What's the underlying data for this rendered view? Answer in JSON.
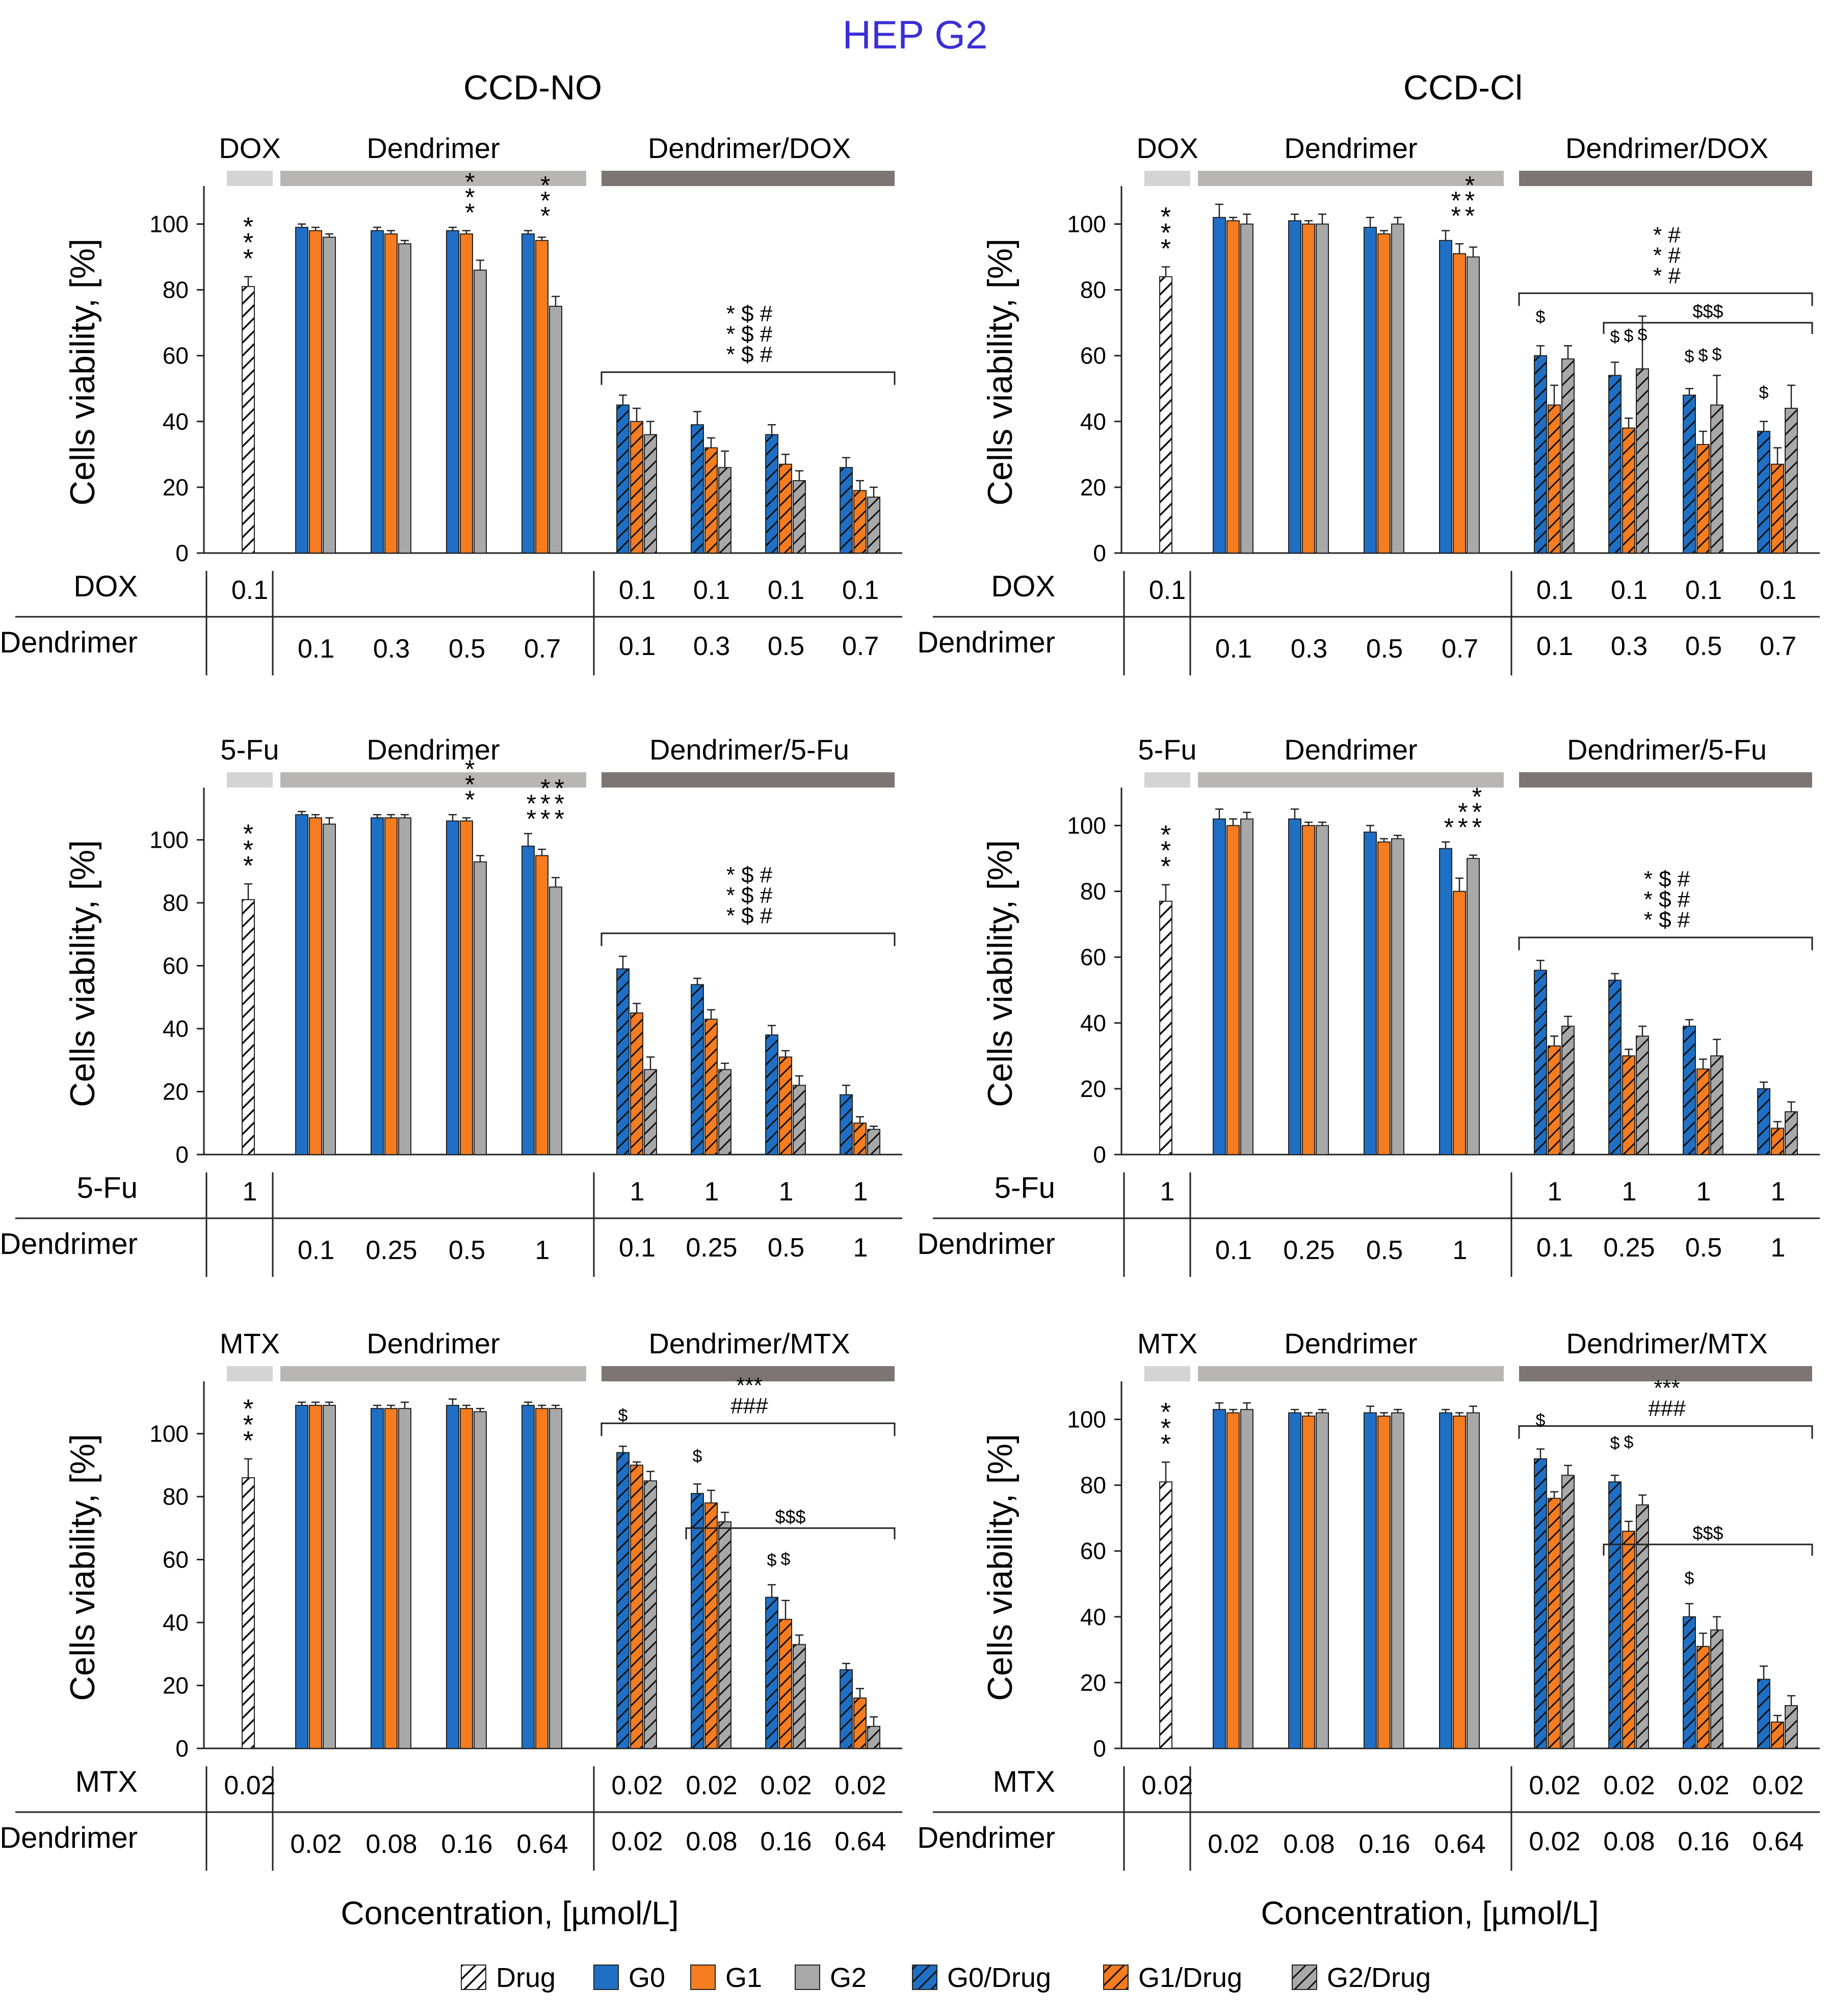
{
  "title": "HEP G2",
  "column_titles": [
    "CCD-NO",
    "CCD-Cl"
  ],
  "ylabel": "Cells viability, [%]",
  "xlabel": "Concentration, [µmol/L]",
  "legend": [
    {
      "label": "Drug",
      "color": "#ffffff",
      "hatched": true
    },
    {
      "label": "G0",
      "color": "#1f6fc5",
      "hatched": false
    },
    {
      "label": "G1",
      "color": "#f57c1f",
      "hatched": false
    },
    {
      "label": "G2",
      "color": "#a8a8a8",
      "hatched": false
    },
    {
      "label": "G0/Drug",
      "color": "#1f6fc5",
      "hatched": true
    },
    {
      "label": "G1/Drug",
      "color": "#f57c1f",
      "hatched": true
    },
    {
      "label": "G2/Drug",
      "color": "#a8a8a8",
      "hatched": true
    }
  ],
  "colors": {
    "title": "#3a2fd6",
    "bar_drug": "#ffffff",
    "g0": "#1f6fc5",
    "g1": "#f57c1f",
    "g2": "#a8a8a8",
    "group_drug": "#d4d4d4",
    "group_dendrimer": "#b8b5b5",
    "group_combo": "#7d7474"
  },
  "chart_data": [
    {
      "type": "bar",
      "panel": "CCD-NO DOX",
      "ylim": [
        0,
        110
      ],
      "yticks": [
        "0",
        "20",
        "40",
        "60",
        "80",
        "100"
      ],
      "group_labels": [
        "DOX",
        "Dendrimer",
        "Dendrimer/DOX"
      ],
      "row1_label": "DOX",
      "row2_label": "Dendrimer",
      "row1_values": [
        "0.1",
        "0.1",
        "0.1",
        "0.1",
        "0.1"
      ],
      "row2_values": [
        "0.1",
        "0.3",
        "0.5",
        "0.7",
        "0.1",
        "0.3",
        "0.5",
        "0.7"
      ],
      "drug": {
        "value": 81,
        "err": 3
      },
      "series": [
        {
          "name": "G0",
          "values": [
            99,
            98,
            98,
            97
          ],
          "err": [
            1,
            1,
            1,
            1
          ]
        },
        {
          "name": "G1",
          "values": [
            98,
            97,
            97,
            95
          ],
          "err": [
            1,
            1,
            1,
            1
          ]
        },
        {
          "name": "G2",
          "values": [
            96,
            94,
            86,
            75
          ],
          "err": [
            1,
            1,
            3,
            3
          ]
        },
        {
          "name": "G0/Drug",
          "values": [
            45,
            39,
            36,
            26
          ],
          "err": [
            3,
            4,
            3,
            3
          ]
        },
        {
          "name": "G1/Drug",
          "values": [
            40,
            32,
            27,
            19
          ],
          "err": [
            4,
            3,
            3,
            3
          ]
        },
        {
          "name": "G2/Drug",
          "values": [
            36,
            26,
            22,
            17
          ],
          "err": [
            4,
            5,
            3,
            3
          ]
        }
      ],
      "annotations": {
        "drug": "***",
        "dend": [
          "",
          "",
          "***",
          "***"
        ],
        "combo_sig": [
          "* $ #",
          "* $ #",
          "* $ #"
        ]
      }
    },
    {
      "type": "bar",
      "panel": "CCD-Cl DOX",
      "ylim": [
        0,
        110
      ],
      "yticks": [
        "0",
        "20",
        "40",
        "60",
        "80",
        "100"
      ],
      "group_labels": [
        "DOX",
        "Dendrimer",
        "Dendrimer/DOX"
      ],
      "row1_label": "DOX",
      "row2_label": "Dendrimer",
      "row1_values": [
        "0.1",
        "0.1",
        "0.1",
        "0.1",
        "0.1"
      ],
      "row2_values": [
        "0.1",
        "0.3",
        "0.5",
        "0.7",
        "0.1",
        "0.3",
        "0.5",
        "0.7"
      ],
      "drug": {
        "value": 84,
        "err": 3
      },
      "series": [
        {
          "name": "G0",
          "values": [
            102,
            101,
            99,
            95
          ],
          "err": [
            4,
            2,
            3,
            3
          ]
        },
        {
          "name": "G1",
          "values": [
            101,
            100,
            97,
            91
          ],
          "err": [
            1,
            1,
            1,
            3
          ]
        },
        {
          "name": "G2",
          "values": [
            100,
            100,
            100,
            90
          ],
          "err": [
            3,
            3,
            2,
            3
          ]
        },
        {
          "name": "G0/Drug",
          "values": [
            60,
            54,
            48,
            37
          ],
          "err": [
            3,
            4,
            2,
            3
          ]
        },
        {
          "name": "G1/Drug",
          "values": [
            45,
            38,
            33,
            27
          ],
          "err": [
            6,
            3,
            4,
            5
          ]
        },
        {
          "name": "G2/Drug",
          "values": [
            59,
            56,
            45,
            44
          ],
          "err": [
            4,
            16,
            9,
            7
          ]
        }
      ],
      "annotations": {
        "drug": "***",
        "dend": [
          "",
          "",
          "",
          "** ***"
        ],
        "combo_sig": [
          "* #",
          "* #",
          "* #"
        ],
        "combo_cols": [
          "$",
          "$ $ $",
          "$ $ $",
          "$"
        ],
        "combo_bracket2": "$$$"
      }
    },
    {
      "type": "bar",
      "panel": "CCD-NO 5-Fu",
      "ylim": [
        0,
        115
      ],
      "yticks": [
        "0",
        "20",
        "40",
        "60",
        "80",
        "100"
      ],
      "group_labels": [
        "5-Fu",
        "Dendrimer",
        "Dendrimer/5-Fu"
      ],
      "row1_label": "5-Fu",
      "row2_label": "Dendrimer",
      "row1_values": [
        "1",
        "1",
        "1",
        "1",
        "1"
      ],
      "row2_values": [
        "0.1",
        "0.25",
        "0.5",
        "1",
        "0.1",
        "0.25",
        "0.5",
        "1"
      ],
      "drug": {
        "value": 81,
        "err": 5
      },
      "series": [
        {
          "name": "G0",
          "values": [
            108,
            107,
            106,
            98
          ],
          "err": [
            1,
            1,
            2,
            4
          ]
        },
        {
          "name": "G1",
          "values": [
            107,
            107,
            106,
            95
          ],
          "err": [
            1,
            1,
            1,
            2
          ]
        },
        {
          "name": "G2",
          "values": [
            105,
            107,
            93,
            85
          ],
          "err": [
            2,
            1,
            2,
            3
          ]
        },
        {
          "name": "G0/Drug",
          "values": [
            59,
            54,
            38,
            19
          ],
          "err": [
            4,
            2,
            3,
            3
          ]
        },
        {
          "name": "G1/Drug",
          "values": [
            45,
            43,
            31,
            10
          ],
          "err": [
            3,
            3,
            2,
            2
          ]
        },
        {
          "name": "G2/Drug",
          "values": [
            27,
            27,
            22,
            8
          ],
          "err": [
            4,
            2,
            3,
            1
          ]
        }
      ],
      "annotations": {
        "drug": "***",
        "dend": [
          "",
          "",
          "***",
          "** *** ***"
        ],
        "combo_sig": [
          "* $ #",
          "* $ #",
          "* $ #"
        ]
      }
    },
    {
      "type": "bar",
      "panel": "CCD-Cl 5-Fu",
      "ylim": [
        0,
        110
      ],
      "yticks": [
        "0",
        "20",
        "40",
        "60",
        "80",
        "100"
      ],
      "group_labels": [
        "5-Fu",
        "Dendrimer",
        "Dendrimer/5-Fu"
      ],
      "row1_label": "5-Fu",
      "row2_label": "Dendrimer",
      "row1_values": [
        "1",
        "1",
        "1",
        "1",
        "1"
      ],
      "row2_values": [
        "0.1",
        "0.25",
        "0.5",
        "1",
        "0.1",
        "0.25",
        "0.5",
        "1"
      ],
      "drug": {
        "value": 77,
        "err": 5
      },
      "series": [
        {
          "name": "G0",
          "values": [
            102,
            102,
            98,
            93
          ],
          "err": [
            3,
            3,
            2,
            2
          ]
        },
        {
          "name": "G1",
          "values": [
            100,
            100,
            95,
            80
          ],
          "err": [
            2,
            1,
            1,
            4
          ]
        },
        {
          "name": "G2",
          "values": [
            102,
            100,
            96,
            90
          ],
          "err": [
            2,
            1,
            1,
            1
          ]
        },
        {
          "name": "G0/Drug",
          "values": [
            56,
            53,
            39,
            20
          ],
          "err": [
            3,
            2,
            2,
            2
          ]
        },
        {
          "name": "G1/Drug",
          "values": [
            33,
            30,
            26,
            8
          ],
          "err": [
            3,
            2,
            3,
            2
          ]
        },
        {
          "name": "G2/Drug",
          "values": [
            39,
            36,
            30,
            13
          ],
          "err": [
            3,
            3,
            5,
            3
          ]
        }
      ],
      "annotations": {
        "drug": "***",
        "dend": [
          "",
          "",
          "",
          "* ** ***"
        ],
        "combo_sig": [
          "* $ #",
          "* $ #",
          "* $ #"
        ]
      }
    },
    {
      "type": "bar",
      "panel": "CCD-NO MTX",
      "ylim": [
        0,
        115
      ],
      "yticks": [
        "0",
        "20",
        "40",
        "60",
        "80",
        "100"
      ],
      "group_labels": [
        "MTX",
        "Dendrimer",
        "Dendrimer/MTX"
      ],
      "row1_label": "MTX",
      "row2_label": "Dendrimer",
      "row1_values": [
        "0.02",
        "0.02",
        "0.02",
        "0.02",
        "0.02"
      ],
      "row2_values": [
        "0.02",
        "0.08",
        "0.16",
        "0.64",
        "0.02",
        "0.08",
        "0.16",
        "0.64"
      ],
      "drug": {
        "value": 86,
        "err": 6
      },
      "series": [
        {
          "name": "G0",
          "values": [
            109,
            108,
            109,
            109
          ],
          "err": [
            1,
            1,
            2,
            1
          ]
        },
        {
          "name": "G1",
          "values": [
            109,
            108,
            108,
            108
          ],
          "err": [
            1,
            1,
            1,
            1
          ]
        },
        {
          "name": "G2",
          "values": [
            109,
            108,
            107,
            108
          ],
          "err": [
            1,
            2,
            1,
            1
          ]
        },
        {
          "name": "G0/Drug",
          "values": [
            94,
            81,
            48,
            25
          ],
          "err": [
            2,
            3,
            4,
            2
          ]
        },
        {
          "name": "G1/Drug",
          "values": [
            90,
            78,
            41,
            16
          ],
          "err": [
            1,
            4,
            6,
            3
          ]
        },
        {
          "name": "G2/Drug",
          "values": [
            85,
            72,
            33,
            7
          ],
          "err": [
            3,
            3,
            3,
            3
          ]
        }
      ],
      "annotations": {
        "drug": "***",
        "dend": [
          "",
          "",
          "",
          ""
        ],
        "combo_sig": [
          "***",
          "###"
        ],
        "combo_cols": [
          "$",
          "$",
          "$ $"
        ],
        "combo_bracket2": "$$$"
      }
    },
    {
      "type": "bar",
      "panel": "CCD-Cl MTX",
      "ylim": [
        0,
        110
      ],
      "yticks": [
        "0",
        "20",
        "40",
        "60",
        "80",
        "100"
      ],
      "group_labels": [
        "MTX",
        "Dendrimer",
        "Dendrimer/MTX"
      ],
      "row1_label": "MTX",
      "row2_label": "Dendrimer",
      "row1_values": [
        "0.02",
        "0.02",
        "0.02",
        "0.02",
        "0.02"
      ],
      "row2_values": [
        "0.02",
        "0.08",
        "0.16",
        "0.64",
        "0.02",
        "0.08",
        "0.16",
        "0.64"
      ],
      "drug": {
        "value": 81,
        "err": 6
      },
      "series": [
        {
          "name": "G0",
          "values": [
            103,
            102,
            102,
            102
          ],
          "err": [
            2,
            1,
            2,
            1
          ]
        },
        {
          "name": "G1",
          "values": [
            102,
            101,
            101,
            101
          ],
          "err": [
            1,
            1,
            1,
            1
          ]
        },
        {
          "name": "G2",
          "values": [
            103,
            102,
            102,
            102
          ],
          "err": [
            2,
            1,
            1,
            2
          ]
        },
        {
          "name": "G0/Drug",
          "values": [
            88,
            81,
            40,
            21
          ],
          "err": [
            3,
            2,
            4,
            4
          ]
        },
        {
          "name": "G1/Drug",
          "values": [
            76,
            66,
            31,
            8
          ],
          "err": [
            2,
            3,
            4,
            2
          ]
        },
        {
          "name": "G2/Drug",
          "values": [
            83,
            74,
            36,
            13
          ],
          "err": [
            3,
            3,
            4,
            3
          ]
        }
      ],
      "annotations": {
        "drug": "***",
        "dend": [
          "",
          "",
          "",
          ""
        ],
        "combo_sig": [
          "***",
          "###"
        ],
        "combo_cols": [
          "$",
          "$ $",
          "$"
        ],
        "combo_bracket2": "$$$"
      }
    }
  ]
}
